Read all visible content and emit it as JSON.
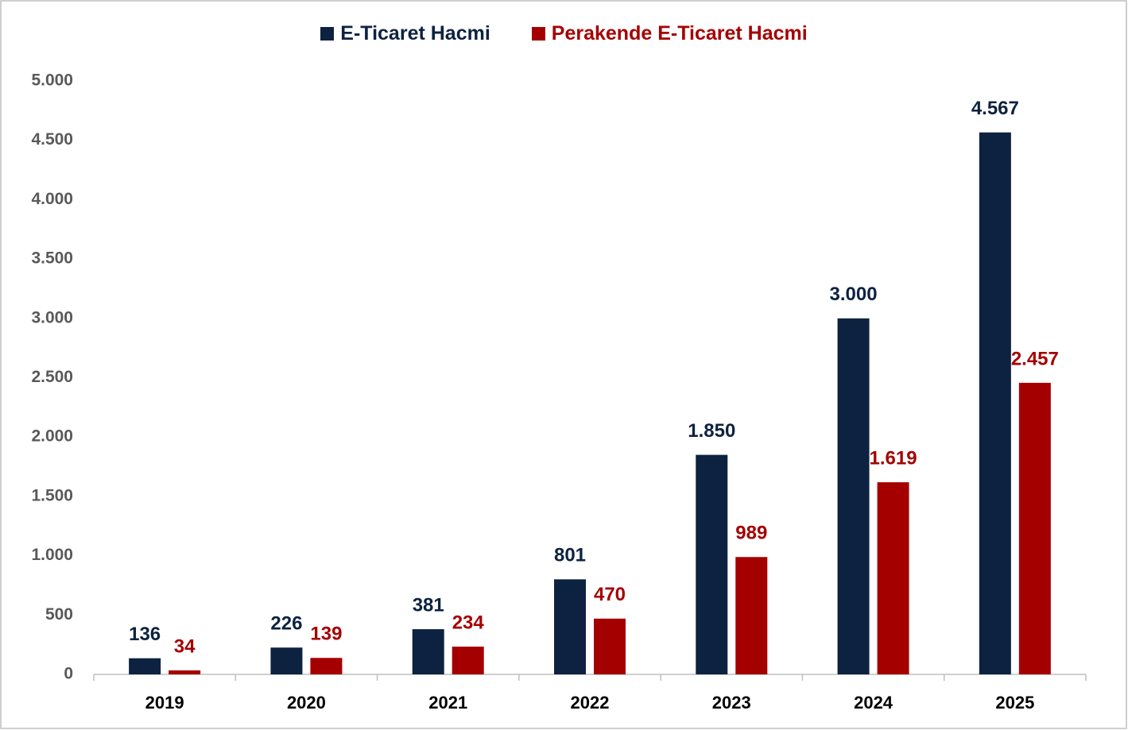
{
  "chart_data": {
    "type": "bar",
    "categories": [
      "2019",
      "2020",
      "2021",
      "2022",
      "2023",
      "2024",
      "2025"
    ],
    "series": [
      {
        "name": "E-Ticaret Hacmi",
        "color": "#0d2240",
        "values": [
          136,
          226,
          381,
          801,
          1850,
          3000,
          4567
        ],
        "value_labels": [
          "136",
          "226",
          "381",
          "801",
          "1.850",
          "3.000",
          "4.567"
        ]
      },
      {
        "name": "Perakende E-Ticaret Hacmi",
        "color": "#a50000",
        "values": [
          34,
          139,
          234,
          470,
          989,
          1619,
          2457
        ],
        "value_labels": [
          "34",
          "139",
          "234",
          "470",
          "989",
          "1.619",
          "2.457"
        ]
      }
    ],
    "ylim": [
      0,
      5000
    ],
    "yticks": [
      0,
      500,
      {
        "value": 1000,
        "label": "1.000"
      },
      {
        "value": 1500,
        "label": "1.500"
      },
      {
        "value": 2000,
        "label": "2.000"
      },
      {
        "value": 2500,
        "label": "2.500"
      },
      {
        "value": 3000,
        "label": "3.000"
      },
      {
        "value": 3500,
        "label": "3.500"
      },
      {
        "value": 4000,
        "label": "4.000"
      },
      {
        "value": 4500,
        "label": "4.500"
      },
      {
        "value": 5000,
        "label": "5.000"
      }
    ],
    "grid": false,
    "legend": "top"
  }
}
